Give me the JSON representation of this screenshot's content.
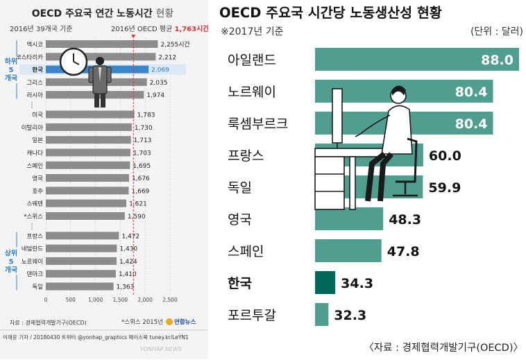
{
  "left": {
    "title": "OECD 주요국 연간 노동시간",
    "title_suffix": "현황",
    "subtitle": "2016년 39개국 기준",
    "avg_label": "2016년 OECD 평균",
    "avg_value_label": "1,763시간",
    "group_low": "하위\n5\n개국",
    "group_high": "상위\n5\n개국",
    "ellipsis": "⋮",
    "source": "자료 : 경제협력개발기구(OECD)",
    "footnote": "*스위스 2015년",
    "credit": "이재윤 기자 / 20180430  트위터 @yonhap_graphics  페이스북 tuney.kr/LeYN1",
    "logo": "연합뉴스",
    "watermark": "YONHAP NEWS",
    "icon": "clock-and-worker-icon",
    "colors": {
      "bar": "#8c8c8c",
      "highlight": "#3a84c9",
      "avg_line": "#e0312b",
      "accent": "#2e7fc4"
    }
  },
  "right": {
    "title": "OECD 주요국 시간당 노동생산성 현황",
    "subtitle": "※2017년 기준",
    "unit": "(단위 : 달러)",
    "source": "〈자료 : 경제협력개발기구(OECD)〉",
    "icon": "office-worker-at-desk-icon",
    "colors": {
      "bar": "#4f9e90",
      "highlight": "#00695c"
    }
  },
  "chart_data": [
    {
      "type": "bar",
      "orientation": "horizontal",
      "title": "OECD 주요국 연간 노동시간 현황",
      "categories": [
        "멕시코",
        "코스타리카",
        "한국",
        "그리스",
        "러시아",
        "미국",
        "이탈리아",
        "일본",
        "캐나다",
        "스페인",
        "영국",
        "호주",
        "스웨덴",
        "*스위스",
        "프랑스",
        "네덜란드",
        "노르웨이",
        "덴마크",
        "독일"
      ],
      "values": [
        2255,
        2212,
        2069,
        2035,
        1974,
        1783,
        1730,
        1713,
        1703,
        1695,
        1676,
        1669,
        1621,
        1590,
        1472,
        1430,
        1424,
        1410,
        1363
      ],
      "value_labels": [
        "2,255시간",
        "2,212",
        "2,069",
        "2,035",
        "1,974",
        "1,783",
        "1,730",
        "1,713",
        "1,703",
        "1,695",
        "1,676",
        "1,669",
        "1,621",
        "1,590",
        "1,472",
        "1,430",
        "1,424",
        "1,410",
        "1,363"
      ],
      "highlight": "한국",
      "reference_line": 1763,
      "xlim": [
        0,
        2500
      ],
      "xticks": [
        0,
        500,
        1000,
        1500,
        2000,
        2500
      ],
      "xtick_labels": [
        "0",
        "500",
        "1,000",
        "1,500",
        "2,000",
        "2,500"
      ]
    },
    {
      "type": "bar",
      "orientation": "horizontal",
      "title": "OECD 주요국 시간당 노동생산성 현황",
      "categories": [
        "아일랜드",
        "노르웨이",
        "룩셈부르크",
        "프랑스",
        "독일",
        "영국",
        "스페인",
        "한국",
        "포르투갈"
      ],
      "values": [
        88.0,
        80.4,
        80.4,
        60.0,
        59.9,
        48.3,
        47.8,
        34.3,
        32.3
      ],
      "value_labels": [
        "88.0",
        "80.4",
        "80.4",
        "60.0",
        "59.9",
        "48.3",
        "47.8",
        "34.3",
        "32.3"
      ],
      "highlight": "한국",
      "xlim": [
        0,
        88.0
      ]
    }
  ]
}
